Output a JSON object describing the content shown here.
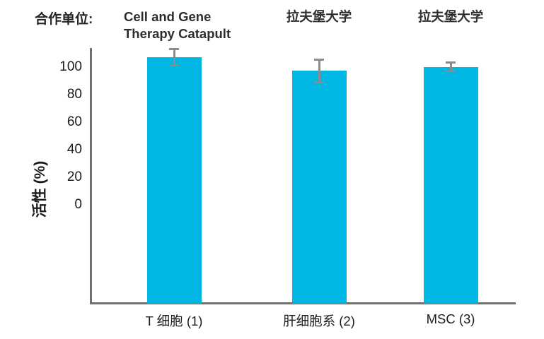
{
  "header": {
    "label": "合作单位:",
    "partners": [
      "Cell and Gene\nTherapy Catapult",
      "拉夫堡大学",
      "拉夫堡大学"
    ]
  },
  "chart_data": {
    "type": "bar",
    "title": "",
    "ylabel": "活性 (%)",
    "xlabel": "",
    "categories": [
      "T 细胞 (1)",
      "肝细胞系 (2)",
      "MSC (3)"
    ],
    "values": [
      107,
      97,
      100
    ],
    "error_bars": [
      5.5,
      8,
      3
    ],
    "partners_per_bar": [
      "Cell and Gene Therapy Catapult",
      "拉夫堡大学",
      "拉夫堡大学"
    ],
    "yticks": [
      0,
      20,
      40,
      60,
      80,
      100
    ],
    "ylim": [
      0,
      112
    ],
    "grid": false,
    "legend": "none",
    "colors": {
      "bar": "#00b7e3",
      "error": "#8c8c8c",
      "axis": "#707070",
      "text": "#1c1c1c"
    }
  }
}
